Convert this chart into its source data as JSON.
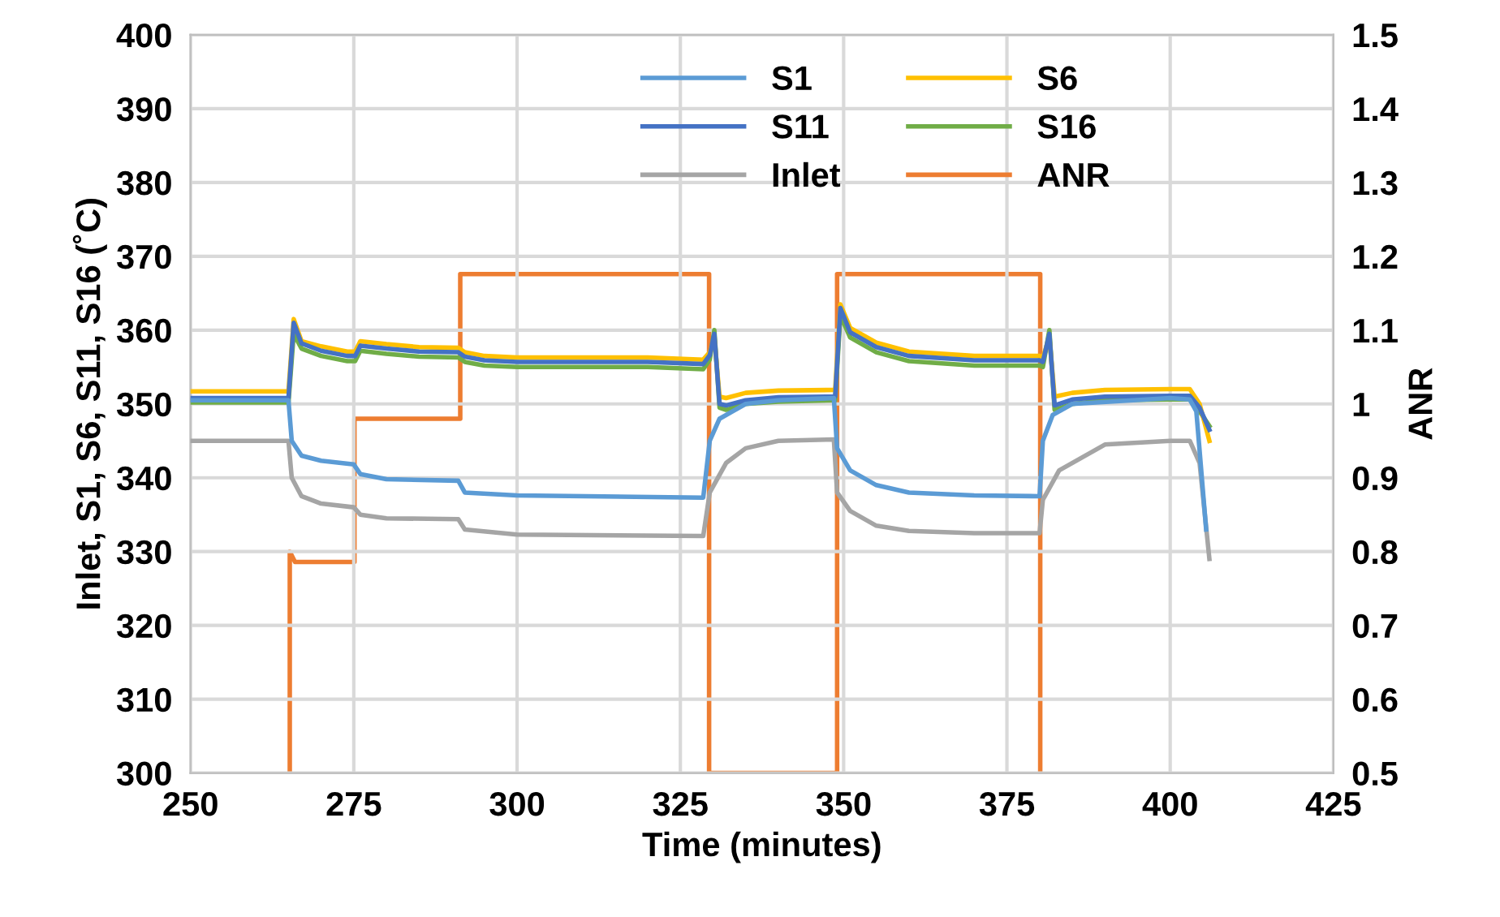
{
  "chart_data": {
    "type": "line",
    "xlabel": "Time (minutes)",
    "ylabel": "Inlet, S1, S6, S11, S16 (˚C)",
    "y2label": "ANR",
    "xlim": [
      250,
      425
    ],
    "xticks": [
      250,
      275,
      300,
      325,
      350,
      375,
      400,
      425
    ],
    "ylim": [
      300,
      400
    ],
    "yticks": [
      300,
      310,
      320,
      330,
      340,
      350,
      360,
      370,
      380,
      390,
      400
    ],
    "y2lim": [
      0.5,
      1.5
    ],
    "y2ticks": [
      {
        "value": 0.5,
        "label": "0.5"
      },
      {
        "value": 0.6,
        "label": "0.6"
      },
      {
        "value": 0.7,
        "label": "0.7"
      },
      {
        "value": 0.8,
        "label": "0.8"
      },
      {
        "value": 0.9,
        "label": "0.9"
      },
      {
        "value": 1,
        "label": "1"
      },
      {
        "value": 1.1,
        "label": "1.1"
      },
      {
        "value": 1.2,
        "label": "1.2"
      },
      {
        "value": 1.3,
        "label": "1.3"
      },
      {
        "value": 1.4,
        "label": "1.4"
      },
      {
        "value": 1.5,
        "label": "1.5"
      }
    ],
    "grid": true,
    "legend": "top",
    "marker": "none",
    "line_style": "solid",
    "series": [
      {
        "name": "S1",
        "color": "#5b9bd5",
        "x": [
          250,
          265,
          265.5,
          267,
          270,
          275,
          276,
          280,
          291,
          292,
          300,
          328.5,
          329.5,
          331,
          335,
          340,
          348.5,
          349,
          351,
          355,
          360,
          370,
          380,
          380.5,
          382,
          385,
          400,
          403,
          404,
          405.5
        ],
        "values": [
          350.5,
          350.5,
          345,
          343,
          342.3,
          341.8,
          340.5,
          339.8,
          339.6,
          338,
          337.6,
          337.3,
          345,
          348,
          350,
          350.5,
          350.8,
          344,
          341,
          339,
          338,
          337.6,
          337.5,
          345,
          348.5,
          350,
          350.8,
          350.6,
          349,
          333
        ]
      },
      {
        "name": "S11",
        "color": "#4472c4",
        "x": [
          250,
          265,
          265.8,
          267,
          270,
          274,
          275.2,
          276,
          280,
          285,
          291,
          292,
          295,
          300,
          310,
          320,
          328.5,
          329.5,
          330.2,
          331,
          332,
          335,
          340,
          348.7,
          349.5,
          351,
          355,
          360,
          370,
          380,
          380.5,
          381.5,
          382.3,
          385,
          390,
          400,
          403,
          404.5,
          406
        ],
        "values": [
          350.8,
          350.8,
          361,
          358.2,
          357.2,
          356.5,
          356.5,
          357.9,
          357.5,
          357.1,
          357,
          356.4,
          355.9,
          355.7,
          355.7,
          355.7,
          355.4,
          356.6,
          359.5,
          350,
          349.8,
          350.5,
          350.9,
          351,
          363,
          359.7,
          357.7,
          356.5,
          355.9,
          355.9,
          355.7,
          359.5,
          349.8,
          350.6,
          351,
          351.1,
          351.1,
          349.5,
          346.5
        ]
      },
      {
        "name": "Inlet",
        "color": "#a5a5a5",
        "x": [
          250,
          265,
          265.5,
          267,
          270,
          275,
          276,
          280,
          291,
          292,
          300,
          328.5,
          329.5,
          332,
          335,
          340,
          348.5,
          349,
          351,
          355,
          360,
          370,
          380,
          380.5,
          383,
          390,
          400,
          403,
          404.5,
          406
        ],
        "values": [
          345,
          345,
          340,
          337.5,
          336.5,
          336,
          335,
          334.5,
          334.4,
          333,
          332.3,
          332.1,
          338,
          342,
          344,
          345,
          345.2,
          338,
          335.5,
          333.5,
          332.8,
          332.5,
          332.5,
          337,
          341,
          344.5,
          345,
          345,
          342,
          329
        ]
      },
      {
        "name": "S6",
        "color": "#ffc000",
        "x": [
          250,
          265,
          265.8,
          267,
          270,
          274,
          275.2,
          276,
          280,
          285,
          291,
          292,
          295,
          300,
          310,
          320,
          328.5,
          329.5,
          330.2,
          331,
          332,
          335,
          340,
          348.7,
          349.5,
          351,
          355,
          360,
          370,
          380,
          380.5,
          381.5,
          382.3,
          385,
          390,
          400,
          403,
          404.5,
          406
        ],
        "values": [
          351.7,
          351.7,
          361.5,
          358.5,
          357.8,
          357.1,
          357.1,
          358.5,
          358.1,
          357.7,
          357.6,
          357,
          356.5,
          356.3,
          356.3,
          356.3,
          356,
          357,
          359,
          351,
          350.8,
          351.5,
          351.8,
          351.9,
          363.5,
          360.3,
          358.3,
          357.1,
          356.5,
          356.5,
          356.3,
          359,
          351,
          351.5,
          351.9,
          352,
          352,
          350,
          345
        ]
      },
      {
        "name": "S16",
        "color": "#70ad47",
        "x": [
          250,
          265,
          265.8,
          267,
          270,
          274,
          275.2,
          276,
          280,
          285,
          291,
          292,
          295,
          300,
          310,
          320,
          328.5,
          329.5,
          330.2,
          331,
          332,
          335,
          340,
          348.7,
          349.5,
          351,
          355,
          360,
          370,
          380,
          380.5,
          381.5,
          382.3,
          385,
          390,
          400,
          403,
          404.5,
          406
        ],
        "values": [
          350.2,
          350.2,
          359.5,
          357.5,
          356.5,
          355.8,
          355.8,
          357.2,
          356.8,
          356.4,
          356.3,
          355.7,
          355.2,
          355,
          355,
          355,
          354.7,
          356,
          360,
          349.5,
          349.2,
          350,
          350.3,
          350.5,
          362,
          359,
          357,
          355.8,
          355.2,
          355.2,
          355,
          360,
          349.2,
          350,
          350.5,
          350.6,
          350.6,
          349,
          347
        ]
      },
      {
        "name": "ANR",
        "color": "#ed7d31",
        "axis": "y2",
        "x": [
          265.2,
          265.2,
          266,
          275.1,
          275.1,
          291.3,
          291.3,
          329.4,
          329.4,
          349.0,
          349.0,
          380.1,
          380.1
        ],
        "values": [
          0.5,
          0.8,
          0.786,
          0.786,
          0.98,
          0.98,
          1.176,
          1.176,
          0.5,
          0.5,
          1.176,
          1.176,
          0.5
        ]
      }
    ]
  }
}
